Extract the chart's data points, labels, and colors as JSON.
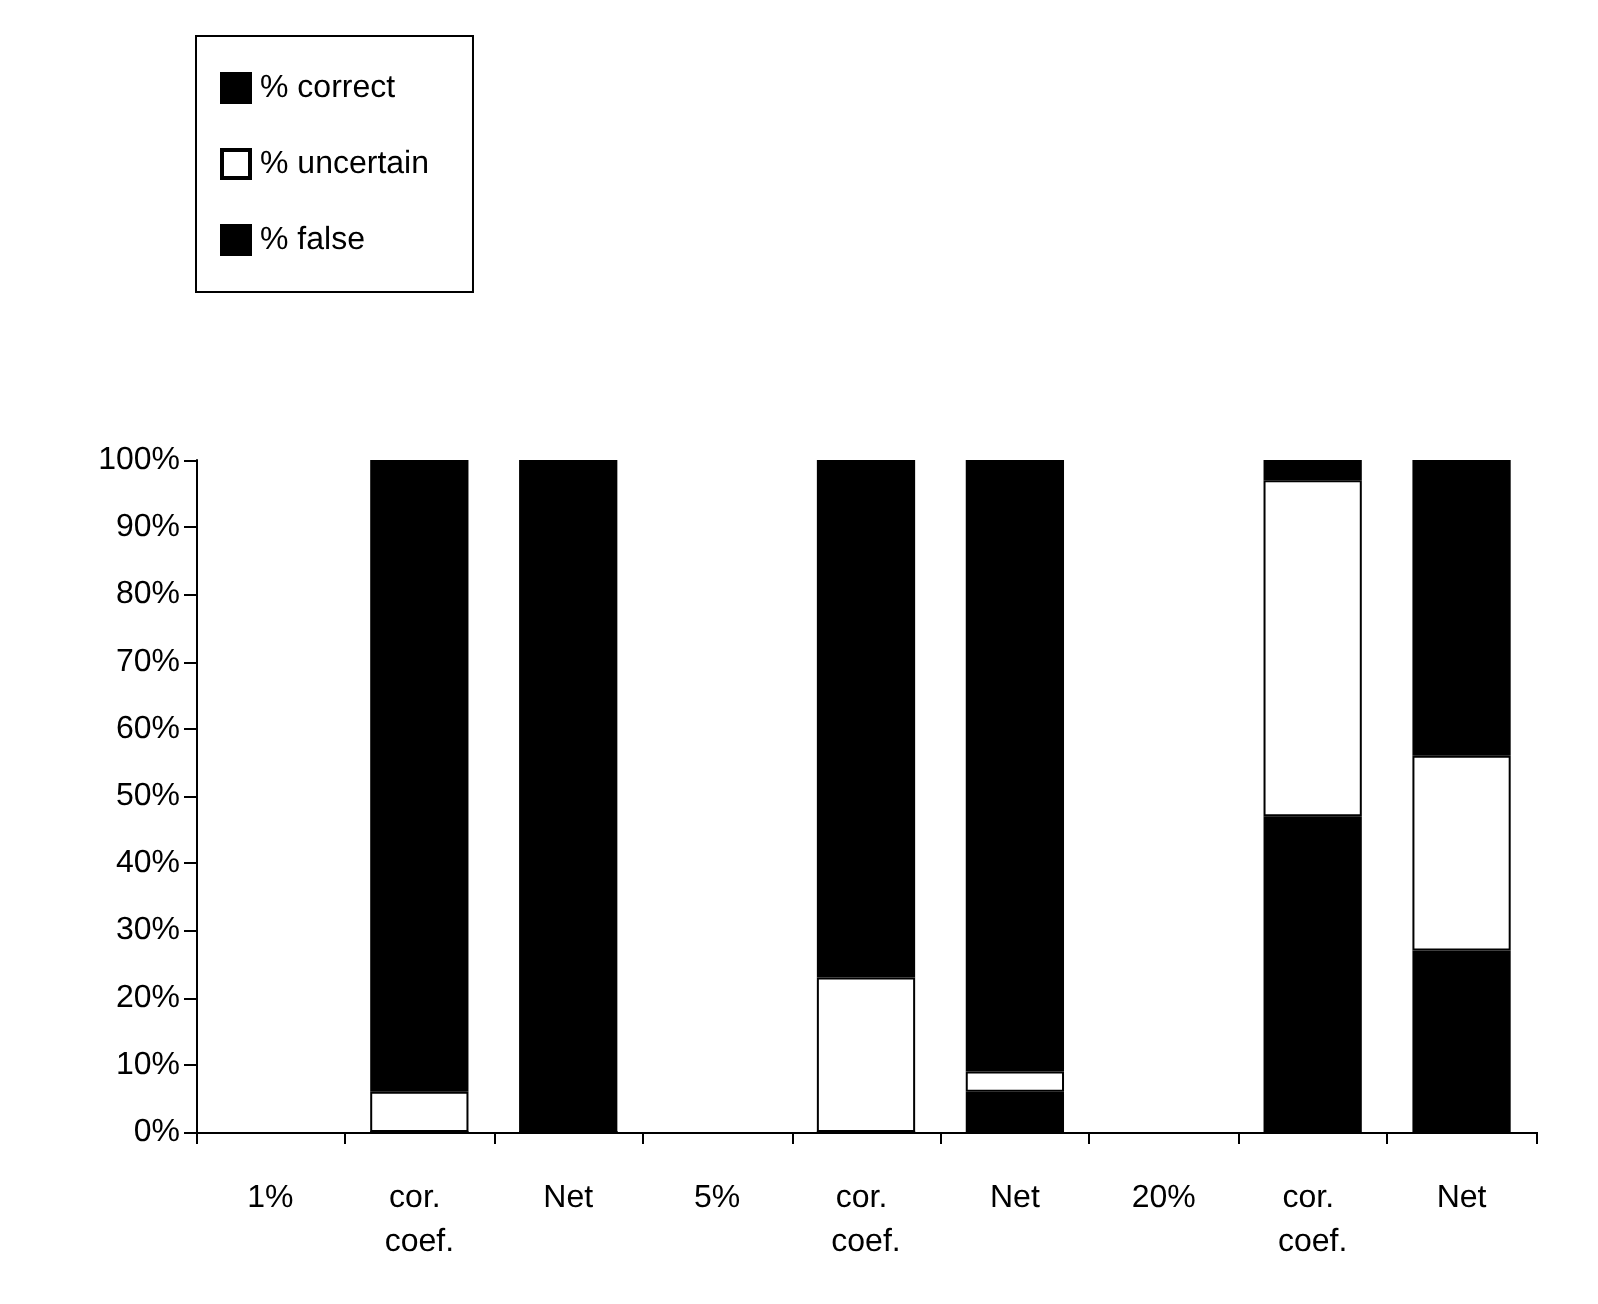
{
  "chart_data": {
    "type": "bar",
    "stacked": true,
    "categories": [
      "1%",
      "cor. coef.",
      "Net",
      "5%",
      "cor. coef.",
      "Net",
      "20%",
      "cor. coef.",
      "Net"
    ],
    "series": [
      {
        "name": "% false",
        "color": "#000000",
        "values": [
          null,
          0,
          0,
          null,
          0,
          6,
          null,
          47,
          27
        ]
      },
      {
        "name": "% uncertain",
        "color": "#ffffff",
        "values": [
          null,
          6,
          0,
          null,
          23,
          3,
          null,
          50,
          29
        ]
      },
      {
        "name": "% correct",
        "color": "#000000",
        "values": [
          null,
          94,
          100,
          null,
          77,
          91,
          null,
          3,
          44
        ]
      }
    ],
    "ylim": [
      0,
      100
    ],
    "yticks": [
      {
        "value": 0,
        "label": "0%"
      },
      {
        "value": 10,
        "label": "10%"
      },
      {
        "value": 20,
        "label": "20%"
      },
      {
        "value": 30,
        "label": "30%"
      },
      {
        "value": 40,
        "label": "40%"
      },
      {
        "value": 50,
        "label": "50%"
      },
      {
        "value": 60,
        "label": "60%"
      },
      {
        "value": 70,
        "label": "70%"
      },
      {
        "value": 80,
        "label": "80%"
      },
      {
        "value": 90,
        "label": "90%"
      },
      {
        "value": 100,
        "label": "100%"
      }
    ],
    "grid": false,
    "legend": "top left"
  }
}
